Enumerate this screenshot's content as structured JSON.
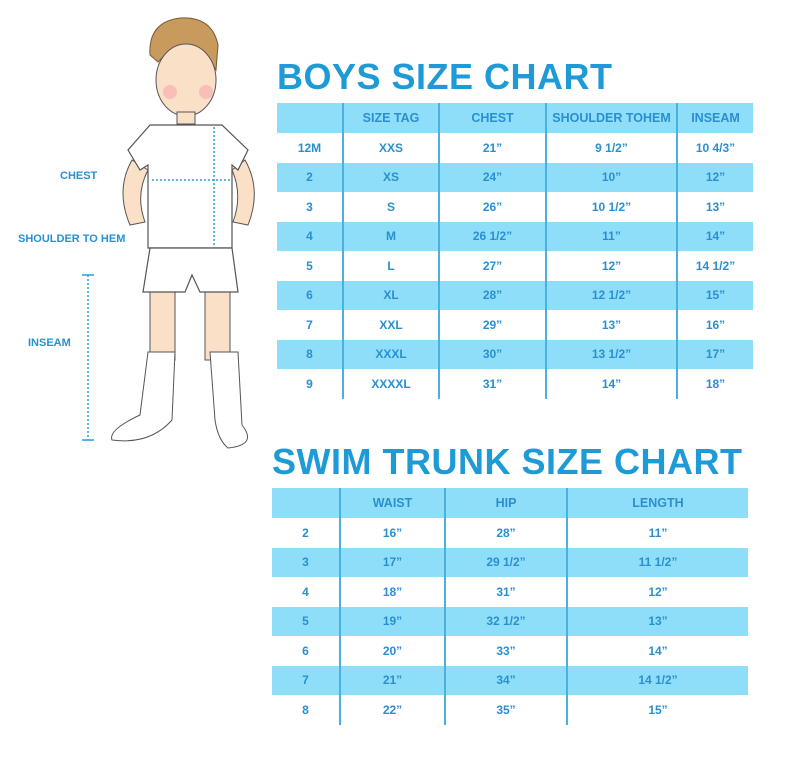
{
  "colors": {
    "accent": "#1e9bd7",
    "row_blue": "#8fdef9",
    "text": "#2a8fd0"
  },
  "figure_labels": {
    "chest": "CHEST",
    "shoulder_to_hem": "SHOULDER TO HEM",
    "inseam": "INSEAM"
  },
  "boys_chart": {
    "title": "BOYS SIZE CHART",
    "headers": [
      "",
      "SIZE TAG",
      "CHEST",
      "SHOULDER TOHEM",
      "INSEAM"
    ],
    "rows": [
      [
        "12M",
        "XXS",
        "21”",
        "9 1/2”",
        "10 4/3”"
      ],
      [
        "2",
        "XS",
        "24”",
        "10”",
        "12”"
      ],
      [
        "3",
        "S",
        "26”",
        "10 1/2”",
        "13”"
      ],
      [
        "4",
        "M",
        "26 1/2”",
        "11”",
        "14”"
      ],
      [
        "5",
        "L",
        "27”",
        "12”",
        "14 1/2”"
      ],
      [
        "6",
        "XL",
        "28”",
        "12 1/2”",
        "15”"
      ],
      [
        "7",
        "XXL",
        "29”",
        "13”",
        "16”"
      ],
      [
        "8",
        "XXXL",
        "30”",
        "13 1/2”",
        "17”"
      ],
      [
        "9",
        "XXXXL",
        "31”",
        "14”",
        "18”"
      ]
    ]
  },
  "swim_chart": {
    "title": "SWIM TRUNK SIZE CHART",
    "headers": [
      "",
      "WAIST",
      "HIP",
      "LENGTH"
    ],
    "rows": [
      [
        "2",
        "16”",
        "28”",
        "11”"
      ],
      [
        "3",
        "17”",
        "29 1/2”",
        "11 1/2”"
      ],
      [
        "4",
        "18”",
        "31”",
        "12”"
      ],
      [
        "5",
        "19”",
        "32 1/2”",
        "13”"
      ],
      [
        "6",
        "20”",
        "33”",
        "14”"
      ],
      [
        "7",
        "21”",
        "34”",
        "14 1/2”"
      ],
      [
        "8",
        "22”",
        "35”",
        "15”"
      ]
    ]
  }
}
